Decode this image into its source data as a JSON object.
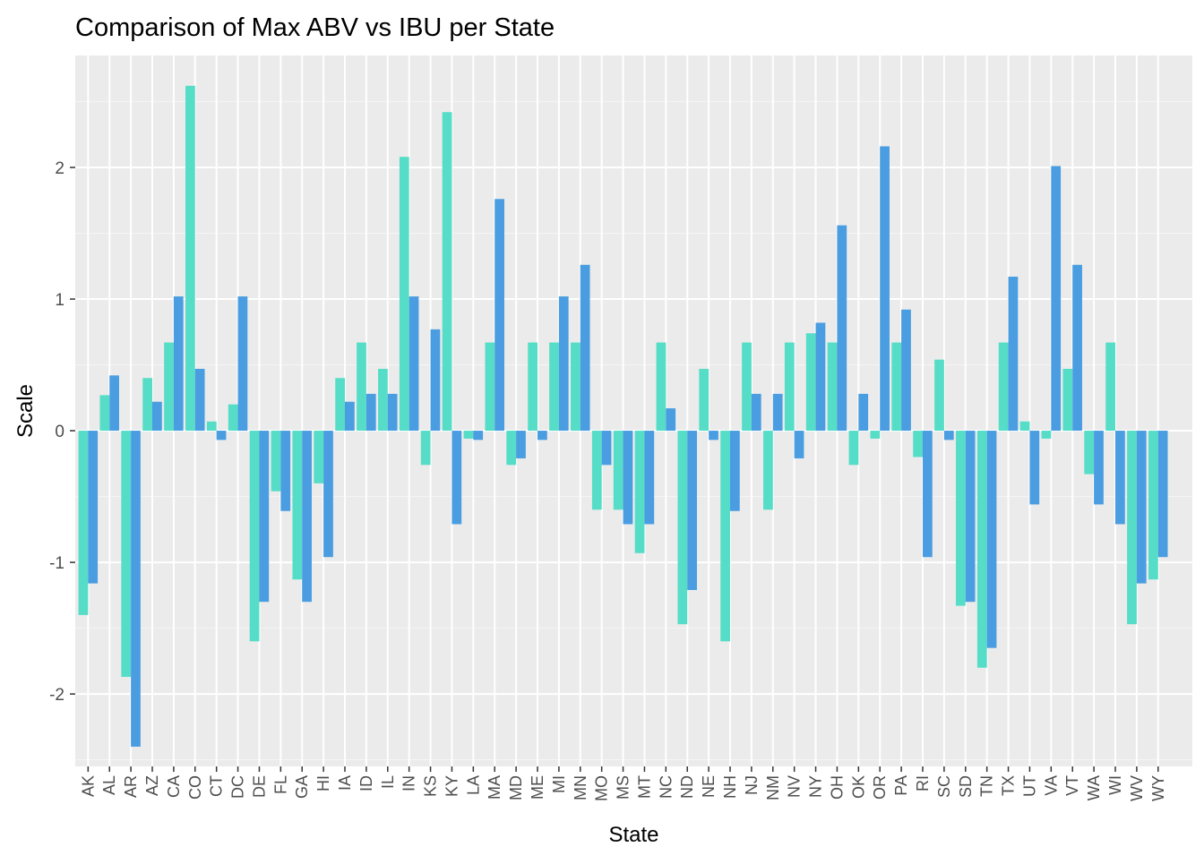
{
  "chart_data": {
    "type": "bar",
    "title": "Comparison of Max ABV vs IBU per State",
    "xlabel": "State",
    "ylabel": "Scale",
    "ylim": [
      -2.55,
      2.85
    ],
    "yticks": [
      -2,
      -1,
      0,
      1,
      2
    ],
    "grid": true,
    "legend": "none",
    "categories": [
      "AK",
      "AL",
      "AR",
      "AZ",
      "CA",
      "CO",
      "CT",
      "DC",
      "DE",
      "FL",
      "GA",
      "HI",
      "IA",
      "ID",
      "IL",
      "IN",
      "KS",
      "KY",
      "LA",
      "MA",
      "MD",
      "ME",
      "MI",
      "MN",
      "MO",
      "MS",
      "MT",
      "NC",
      "ND",
      "NE",
      "NH",
      "NJ",
      "NM",
      "NV",
      "NY",
      "OH",
      "OK",
      "OR",
      "PA",
      "RI",
      "SC",
      "SD",
      "TN",
      "TX",
      "UT",
      "VA",
      "VT",
      "WA",
      "WI",
      "WV",
      "WY"
    ],
    "series": [
      {
        "color": "#56DDC7",
        "values": [
          -1.4,
          0.27,
          -1.87,
          0.4,
          0.67,
          2.62,
          0.07,
          0.2,
          -1.6,
          -0.46,
          -1.13,
          -0.4,
          0.4,
          0.67,
          0.47,
          2.08,
          -0.26,
          2.42,
          -0.06,
          0.67,
          -0.26,
          0.67,
          0.67,
          0.67,
          -0.6,
          -0.6,
          -0.93,
          0.67,
          -1.47,
          0.47,
          -1.6,
          0.67,
          -0.6,
          0.67,
          0.74,
          0.67,
          -0.26,
          -0.06,
          0.67,
          -0.2,
          0.54,
          -1.33,
          -1.8,
          0.67,
          0.07,
          -0.06,
          0.47,
          -0.33,
          0.67,
          -1.47,
          -1.13
        ]
      },
      {
        "color": "#4A9DE0",
        "values": [
          -1.16,
          0.42,
          -2.4,
          0.22,
          1.02,
          0.47,
          -0.07,
          1.02,
          -1.3,
          -0.61,
          -1.3,
          -0.96,
          0.22,
          0.28,
          0.28,
          1.02,
          0.77,
          -0.71,
          -0.07,
          1.76,
          -0.21,
          -0.07,
          1.02,
          1.26,
          -0.26,
          -0.71,
          -0.71,
          0.17,
          -1.21,
          -0.07,
          -0.61,
          0.28,
          0.28,
          -0.21,
          0.82,
          1.56,
          0.28,
          2.16,
          0.92,
          -0.96,
          -0.07,
          -1.3,
          -1.65,
          1.17,
          -0.56,
          2.01,
          1.26,
          -0.56,
          -0.71,
          -1.16,
          -0.96
        ]
      }
    ]
  }
}
